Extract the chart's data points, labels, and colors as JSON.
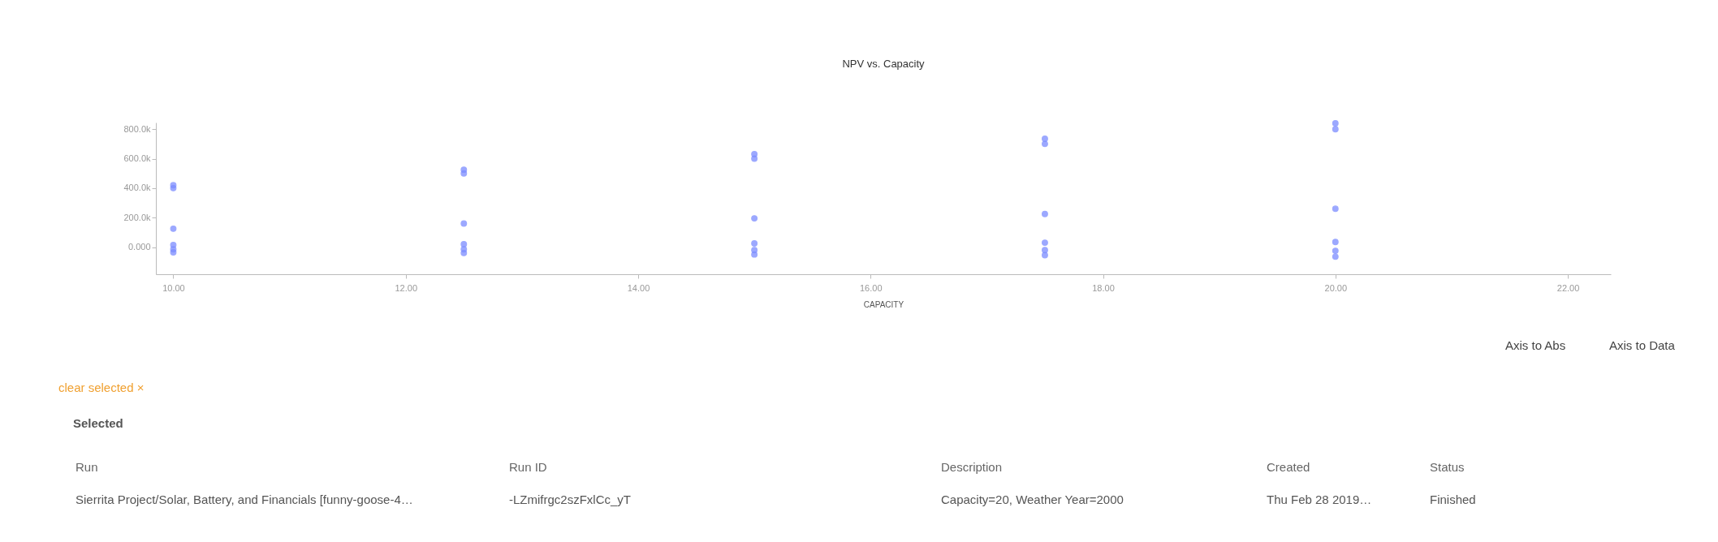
{
  "chart_data": {
    "type": "scatter",
    "title": "NPV vs. Capacity",
    "xlabel": "CAPACITY",
    "x": [
      10,
      10,
      10,
      10,
      10,
      10,
      12.5,
      12.5,
      12.5,
      12.5,
      12.5,
      12.5,
      15,
      15,
      15,
      15,
      15,
      15,
      17.5,
      17.5,
      17.5,
      17.5,
      17.5,
      17.5,
      20,
      20,
      20,
      20,
      20,
      20
    ],
    "series": [
      {
        "color": "#7b8cff",
        "values": [
          420000,
          400000,
          125000,
          15000,
          -15000,
          -35000,
          525000,
          500000,
          160000,
          20000,
          -15000,
          -40000,
          630000,
          600000,
          195000,
          25000,
          -20000,
          -50000,
          735000,
          700000,
          225000,
          30000,
          -20000,
          -55000,
          840000,
          800000,
          260000,
          35000,
          -25000,
          -65000
        ]
      }
    ],
    "xlim": [
      9.85,
      22.37
    ],
    "ylim": [
      -184000,
      845000
    ],
    "xticks": [
      {
        "value": 10,
        "label": "10.00"
      },
      {
        "value": 12,
        "label": "12.00"
      },
      {
        "value": 14,
        "label": "14.00"
      },
      {
        "value": 16,
        "label": "16.00"
      },
      {
        "value": 18,
        "label": "18.00"
      },
      {
        "value": 20,
        "label": "20.00"
      },
      {
        "value": 22,
        "label": "22.00"
      }
    ],
    "yticks": [
      {
        "value": 0,
        "label": "0.000"
      },
      {
        "value": 200000,
        "label": "200.0k"
      },
      {
        "value": 400000,
        "label": "400.0k"
      },
      {
        "value": 600000,
        "label": "600.0k"
      },
      {
        "value": 800000,
        "label": "800.0k"
      }
    ],
    "grid": false,
    "legend": false,
    "marker": "circle",
    "annotations": [
      "Axis to Abs",
      "Axis to Data",
      "clear selected ×",
      "Selected",
      "Run",
      "Run ID",
      "Description",
      "Created",
      "Status",
      "Sierrita Project/Solar, Battery, and Financials [funny-goose-4…",
      "-LZmifrgc2szFxlCc_yT",
      "Capacity=20, Weather Year=2000",
      "Thu Feb 28 2019…",
      "Finished"
    ]
  }
}
